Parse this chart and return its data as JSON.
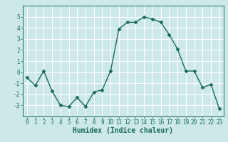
{
  "x": [
    0,
    1,
    2,
    3,
    4,
    5,
    6,
    7,
    8,
    9,
    10,
    11,
    12,
    13,
    14,
    15,
    16,
    17,
    18,
    19,
    20,
    21,
    22,
    23
  ],
  "y": [
    -0.5,
    -1.2,
    0.1,
    -1.7,
    -3.0,
    -3.1,
    -2.3,
    -3.1,
    -1.8,
    -1.6,
    0.1,
    3.9,
    4.5,
    4.5,
    5.0,
    4.8,
    4.5,
    3.4,
    2.1,
    0.1,
    0.1,
    -1.4,
    -1.1,
    -3.3
  ],
  "line_color": "#1a6b5a",
  "marker": "D",
  "markersize": 2.5,
  "linewidth": 1.0,
  "xlabel": "Humidex (Indice chaleur)",
  "xlabel_fontsize": 7,
  "xlim": [
    -0.5,
    23.5
  ],
  "ylim": [
    -4,
    6
  ],
  "yticks": [
    -3,
    -2,
    -1,
    0,
    1,
    2,
    3,
    4,
    5
  ],
  "xticks": [
    0,
    1,
    2,
    3,
    4,
    5,
    6,
    7,
    8,
    9,
    10,
    11,
    12,
    13,
    14,
    15,
    16,
    17,
    18,
    19,
    20,
    21,
    22,
    23
  ],
  "bg_color": "#cce8e8",
  "grid_color": "#ffffff",
  "tick_fontsize": 5.5,
  "tick_color": "#1a6b5a",
  "spine_color": "#1a6b5a"
}
